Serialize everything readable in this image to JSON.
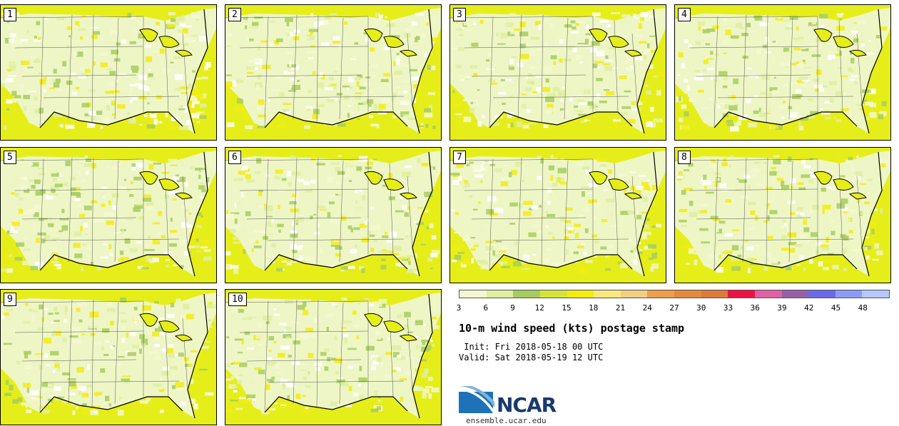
{
  "title": "10-m wind speed (kts) postage stamp",
  "init": " Init: Fri 2018-05-18 00 UTC",
  "valid": "Valid: Sat 2018-05-19 12 UTC",
  "site": "ensemble.ucar.edu",
  "logo_text": "NCAR",
  "members": [
    "1",
    "2",
    "3",
    "4",
    "5",
    "6",
    "7",
    "8",
    "9",
    "10"
  ],
  "colorbar": {
    "ticks": [
      "3",
      "6",
      "9",
      "12",
      "15",
      "18",
      "21",
      "24",
      "27",
      "30",
      "33",
      "36",
      "39",
      "42",
      "45",
      "48"
    ],
    "colors": [
      "#f4f8d0",
      "#dfeea0",
      "#a7cc5e",
      "#d6e43a",
      "#f2ec10",
      "#fae87a",
      "#f3cf82",
      "#ec9e4c",
      "#e38a3e",
      "#e07a3a",
      "#ee1144",
      "#e060a4",
      "#9860a8",
      "#6a6ae8",
      "#8c9cf6",
      "#b6c8fc"
    ]
  }
}
